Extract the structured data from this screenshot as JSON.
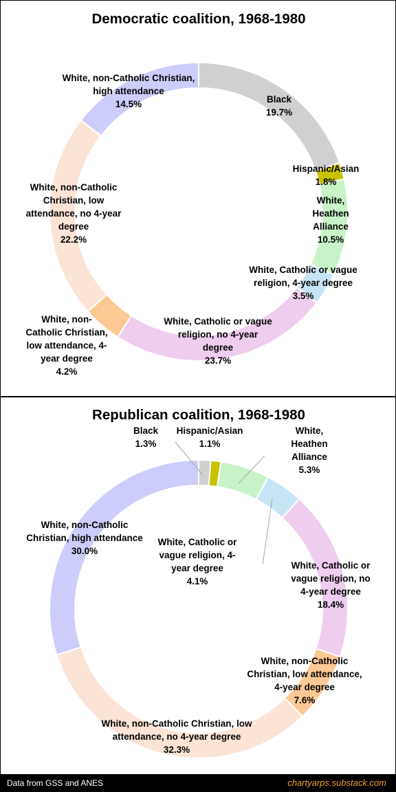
{
  "chart_data": [
    {
      "type": "pie",
      "title": "Democratic coalition, 1968-1980",
      "series": [
        {
          "name": "Black",
          "value": 19.7,
          "label": "19.7%",
          "color": "#d0d0d0"
        },
        {
          "name": "Hispanic/Asian",
          "value": 1.8,
          "label": "1.8%",
          "color": "#c8c200"
        },
        {
          "name": "White, Heathen Alliance",
          "value": 10.5,
          "label": "10.5%",
          "color": "#c8f2c8"
        },
        {
          "name": "White, Catholic or vague religion, 4-year degree",
          "value": 3.5,
          "label": "3.5%",
          "color": "#c6e4f4"
        },
        {
          "name": "White, Catholic or vague religion, no 4-year degree",
          "value": 23.7,
          "label": "23.7%",
          "color": "#efcdef"
        },
        {
          "name": "White, non-Catholic Christian, low attendance, 4-year degree",
          "value": 4.2,
          "label": "4.2%",
          "color": "#fcc894"
        },
        {
          "name": "White, non-Catholic Christian, low attendance, no 4-year degree",
          "value": 22.2,
          "label": "22.2%",
          "color": "#fbe3d6"
        },
        {
          "name": "White, non-Catholic Christian, high attendance",
          "value": 14.5,
          "label": "14.5%",
          "color": "#cdcdfb"
        }
      ]
    },
    {
      "type": "pie",
      "title": "Republican coalition, 1968-1980",
      "series": [
        {
          "name": "Black",
          "value": 1.3,
          "label": "1.3%",
          "color": "#d0d0d0"
        },
        {
          "name": "Hispanic/Asian",
          "value": 1.1,
          "label": "1.1%",
          "color": "#c8c200"
        },
        {
          "name": "White, Heathen Alliance",
          "value": 5.3,
          "label": "5.3%",
          "color": "#c8f2c8"
        },
        {
          "name": "White, Catholic or vague religion, 4-year degree",
          "value": 4.1,
          "label": "4.1%",
          "color": "#c6e4f4"
        },
        {
          "name": "White, Catholic or vague religion, no 4-year degree",
          "value": 18.4,
          "label": "18.4%",
          "color": "#efcdef"
        },
        {
          "name": "White, non-Catholic Christian, low attendance, 4-year degree",
          "value": 7.6,
          "label": "7.6%",
          "color": "#fcc894"
        },
        {
          "name": "White, non-Catholic Christian, low attendance, no 4-year degree",
          "value": 32.3,
          "label": "32.3%",
          "color": "#fbe3d6"
        },
        {
          "name": "White, non-Catholic Christian, high attendance",
          "value": 30.0,
          "label": "30.0%",
          "color": "#cdcdfb"
        }
      ]
    }
  ],
  "labels": [
    [
      [
        "Black",
        "19.7%"
      ],
      [
        "Hispanic/Asian",
        "1.8%"
      ],
      [
        "White,",
        "Heathen",
        "Alliance",
        "10.5%"
      ],
      [
        "White, Catholic or vague",
        "religion, 4-year degree",
        "3.5%"
      ],
      [
        "White, Catholic or vague",
        "religion, no 4-year",
        "degree",
        "23.7%"
      ],
      [
        "White, non-",
        "Catholic Christian,",
        "low attendance, 4-",
        "year degree",
        "4.2%"
      ],
      [
        "White, non-Catholic",
        "Christian, low",
        "attendance, no 4-year",
        "degree",
        "22.2%"
      ],
      [
        "White, non-Catholic Christian,",
        "high attendance",
        "14.5%"
      ]
    ],
    [
      [
        "Black",
        "1.3%"
      ],
      [
        "Hispanic/Asian",
        "1.1%"
      ],
      [
        "White,",
        "Heathen",
        "Alliance",
        "5.3%"
      ],
      [
        "White, Catholic or",
        "vague religion, 4-",
        "year degree",
        "4.1%"
      ],
      [
        "White, Catholic or",
        "vague religion, no",
        "4-year degree",
        "18.4%"
      ],
      [
        "White, non-Catholic",
        "Christian, low attendance,",
        "4-year degree",
        "7.6%"
      ],
      [
        "White, non-Catholic Christian, low",
        "attendance, no 4-year degree",
        "32.3%"
      ],
      [
        "White, non-Catholic",
        "Christian, high attendance",
        "30.0%"
      ]
    ]
  ],
  "footer": {
    "source": "Data from GSS and ANES",
    "site": "chartyarps.substack.com"
  }
}
